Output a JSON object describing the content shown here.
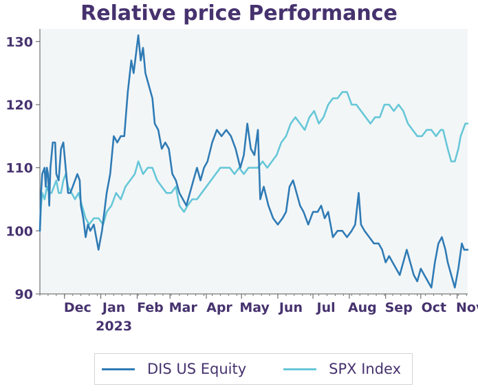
{
  "chart_data": {
    "type": "line",
    "title": "Relative price Performance",
    "xlabel": "",
    "ylabel": "",
    "ylim": [
      90,
      132
    ],
    "xlim": [
      "2022-11-10",
      "2023-11-10"
    ],
    "yticks": [
      90,
      100,
      110,
      120,
      130
    ],
    "xticks": [
      {
        "date": "2022-12-01",
        "label": "Dec"
      },
      {
        "date": "2023-01-01",
        "label": "Jan",
        "sublabel": "2023"
      },
      {
        "date": "2023-02-01",
        "label": "Feb"
      },
      {
        "date": "2023-03-01",
        "label": "Mar"
      },
      {
        "date": "2023-04-01",
        "label": "Apr"
      },
      {
        "date": "2023-05-01",
        "label": "May"
      },
      {
        "date": "2023-06-01",
        "label": "Jun"
      },
      {
        "date": "2023-07-01",
        "label": "Jul"
      },
      {
        "date": "2023-08-01",
        "label": "Aug"
      },
      {
        "date": "2023-09-01",
        "label": "Sep"
      },
      {
        "date": "2023-10-01",
        "label": "Oct"
      },
      {
        "date": "2023-11-01",
        "label": "Nov"
      }
    ],
    "grid": false,
    "legend": "bottom-center",
    "series": [
      {
        "name": "DIS US Equity",
        "color": "#2f7bb5",
        "points": [
          [
            "2022-11-10",
            100
          ],
          [
            "2022-11-11",
            106
          ],
          [
            "2022-11-12",
            109
          ],
          [
            "2022-11-14",
            110
          ],
          [
            "2022-11-15",
            107
          ],
          [
            "2022-11-16",
            110
          ],
          [
            "2022-11-17",
            109
          ],
          [
            "2022-11-18",
            104
          ],
          [
            "2022-11-19",
            110
          ],
          [
            "2022-11-21",
            114
          ],
          [
            "2022-11-23",
            114
          ],
          [
            "2022-11-24",
            109
          ],
          [
            "2022-11-26",
            108
          ],
          [
            "2022-11-28",
            113
          ],
          [
            "2022-11-30",
            114
          ],
          [
            "2022-12-02",
            110
          ],
          [
            "2022-12-04",
            106
          ],
          [
            "2022-12-06",
            106
          ],
          [
            "2022-12-08",
            107
          ],
          [
            "2022-12-10",
            108
          ],
          [
            "2022-12-12",
            109
          ],
          [
            "2022-12-14",
            108
          ],
          [
            "2022-12-15",
            104
          ],
          [
            "2022-12-17",
            102
          ],
          [
            "2022-12-19",
            99
          ],
          [
            "2022-12-21",
            101
          ],
          [
            "2022-12-23",
            100
          ],
          [
            "2022-12-26",
            101
          ],
          [
            "2022-12-28",
            99
          ],
          [
            "2022-12-30",
            97
          ],
          [
            "2023-01-02",
            100
          ],
          [
            "2023-01-04",
            103
          ],
          [
            "2023-01-06",
            106
          ],
          [
            "2023-01-09",
            109
          ],
          [
            "2023-01-12",
            115
          ],
          [
            "2023-01-15",
            114
          ],
          [
            "2023-01-18",
            115
          ],
          [
            "2023-01-21",
            115
          ],
          [
            "2023-01-24",
            122
          ],
          [
            "2023-01-27",
            127
          ],
          [
            "2023-01-29",
            125
          ],
          [
            "2023-01-31",
            128
          ],
          [
            "2023-02-02",
            131
          ],
          [
            "2023-02-04",
            127
          ],
          [
            "2023-02-06",
            129
          ],
          [
            "2023-02-08",
            125
          ],
          [
            "2023-02-11",
            123
          ],
          [
            "2023-02-14",
            121
          ],
          [
            "2023-02-16",
            117
          ],
          [
            "2023-02-19",
            116
          ],
          [
            "2023-02-22",
            113
          ],
          [
            "2023-02-25",
            114
          ],
          [
            "2023-02-28",
            113
          ],
          [
            "2023-03-03",
            109
          ],
          [
            "2023-03-06",
            108
          ],
          [
            "2023-03-09",
            106
          ],
          [
            "2023-03-12",
            105
          ],
          [
            "2023-03-15",
            104
          ],
          [
            "2023-03-18",
            106
          ],
          [
            "2023-03-21",
            108
          ],
          [
            "2023-03-24",
            110
          ],
          [
            "2023-03-27",
            108
          ],
          [
            "2023-03-30",
            110
          ],
          [
            "2023-04-02",
            111
          ],
          [
            "2023-04-06",
            114
          ],
          [
            "2023-04-10",
            116
          ],
          [
            "2023-04-14",
            115
          ],
          [
            "2023-04-18",
            116
          ],
          [
            "2023-04-22",
            115
          ],
          [
            "2023-04-26",
            113
          ],
          [
            "2023-04-30",
            110
          ],
          [
            "2023-05-03",
            112
          ],
          [
            "2023-05-06",
            117
          ],
          [
            "2023-05-09",
            113
          ],
          [
            "2023-05-12",
            112
          ],
          [
            "2023-05-15",
            116
          ],
          [
            "2023-05-17",
            105
          ],
          [
            "2023-05-20",
            107
          ],
          [
            "2023-05-24",
            104
          ],
          [
            "2023-05-28",
            102
          ],
          [
            "2023-06-01",
            101
          ],
          [
            "2023-06-05",
            102
          ],
          [
            "2023-06-08",
            103
          ],
          [
            "2023-06-11",
            107
          ],
          [
            "2023-06-14",
            108
          ],
          [
            "2023-06-17",
            106
          ],
          [
            "2023-06-20",
            104
          ],
          [
            "2023-06-23",
            103
          ],
          [
            "2023-06-27",
            101
          ],
          [
            "2023-07-01",
            103
          ],
          [
            "2023-07-05",
            103
          ],
          [
            "2023-07-08",
            104
          ],
          [
            "2023-07-11",
            102
          ],
          [
            "2023-07-14",
            103
          ],
          [
            "2023-07-18",
            99
          ],
          [
            "2023-07-22",
            100
          ],
          [
            "2023-07-26",
            100
          ],
          [
            "2023-07-30",
            99
          ],
          [
            "2023-08-03",
            100
          ],
          [
            "2023-08-06",
            101
          ],
          [
            "2023-08-09",
            106
          ],
          [
            "2023-08-11",
            101
          ],
          [
            "2023-08-14",
            100
          ],
          [
            "2023-08-18",
            99
          ],
          [
            "2023-08-22",
            98
          ],
          [
            "2023-08-26",
            98
          ],
          [
            "2023-08-29",
            97
          ],
          [
            "2023-09-01",
            95
          ],
          [
            "2023-09-04",
            96
          ],
          [
            "2023-09-07",
            95
          ],
          [
            "2023-09-10",
            94
          ],
          [
            "2023-09-13",
            93
          ],
          [
            "2023-09-16",
            95
          ],
          [
            "2023-09-19",
            97
          ],
          [
            "2023-09-22",
            95
          ],
          [
            "2023-09-25",
            93
          ],
          [
            "2023-09-28",
            92
          ],
          [
            "2023-10-01",
            94
          ],
          [
            "2023-10-04",
            93
          ],
          [
            "2023-10-07",
            92
          ],
          [
            "2023-10-10",
            91
          ],
          [
            "2023-10-13",
            95
          ],
          [
            "2023-10-16",
            98
          ],
          [
            "2023-10-19",
            99
          ],
          [
            "2023-10-22",
            97
          ],
          [
            "2023-10-24",
            95
          ],
          [
            "2023-10-27",
            93
          ],
          [
            "2023-10-30",
            91
          ],
          [
            "2023-11-02",
            94
          ],
          [
            "2023-11-05",
            98
          ],
          [
            "2023-11-07",
            97
          ],
          [
            "2023-11-10",
            97
          ]
        ]
      },
      {
        "name": "SPX Index",
        "color": "#66c7d8",
        "points": [
          [
            "2022-11-10",
            100
          ],
          [
            "2022-11-11",
            104
          ],
          [
            "2022-11-12",
            106
          ],
          [
            "2022-11-14",
            105
          ],
          [
            "2022-11-16",
            107
          ],
          [
            "2022-11-18",
            106
          ],
          [
            "2022-11-20",
            106
          ],
          [
            "2022-11-22",
            107
          ],
          [
            "2022-11-24",
            108
          ],
          [
            "2022-11-26",
            106
          ],
          [
            "2022-11-28",
            106
          ],
          [
            "2022-11-30",
            108
          ],
          [
            "2022-12-02",
            109
          ],
          [
            "2022-12-04",
            107
          ],
          [
            "2022-12-07",
            106
          ],
          [
            "2022-12-10",
            105
          ],
          [
            "2022-12-13",
            106
          ],
          [
            "2022-12-16",
            104
          ],
          [
            "2022-12-19",
            102
          ],
          [
            "2022-12-22",
            101
          ],
          [
            "2022-12-26",
            102
          ],
          [
            "2022-12-30",
            102
          ],
          [
            "2023-01-03",
            101
          ],
          [
            "2023-01-06",
            103
          ],
          [
            "2023-01-10",
            104
          ],
          [
            "2023-01-14",
            106
          ],
          [
            "2023-01-18",
            105
          ],
          [
            "2023-01-22",
            107
          ],
          [
            "2023-01-26",
            108
          ],
          [
            "2023-01-30",
            109
          ],
          [
            "2023-02-02",
            111
          ],
          [
            "2023-02-06",
            109
          ],
          [
            "2023-02-10",
            110
          ],
          [
            "2023-02-14",
            110
          ],
          [
            "2023-02-18",
            108
          ],
          [
            "2023-02-22",
            107
          ],
          [
            "2023-02-26",
            106
          ],
          [
            "2023-03-02",
            106
          ],
          [
            "2023-03-06",
            107
          ],
          [
            "2023-03-09",
            104
          ],
          [
            "2023-03-13",
            103
          ],
          [
            "2023-03-16",
            104
          ],
          [
            "2023-03-20",
            105
          ],
          [
            "2023-03-24",
            105
          ],
          [
            "2023-03-28",
            106
          ],
          [
            "2023-04-01",
            107
          ],
          [
            "2023-04-05",
            108
          ],
          [
            "2023-04-09",
            109
          ],
          [
            "2023-04-13",
            110
          ],
          [
            "2023-04-17",
            110
          ],
          [
            "2023-04-21",
            110
          ],
          [
            "2023-04-25",
            109
          ],
          [
            "2023-04-29",
            110
          ],
          [
            "2023-05-03",
            109
          ],
          [
            "2023-05-07",
            110
          ],
          [
            "2023-05-11",
            110
          ],
          [
            "2023-05-15",
            110
          ],
          [
            "2023-05-19",
            111
          ],
          [
            "2023-05-23",
            110
          ],
          [
            "2023-05-27",
            111
          ],
          [
            "2023-05-31",
            112
          ],
          [
            "2023-06-04",
            114
          ],
          [
            "2023-06-08",
            115
          ],
          [
            "2023-06-12",
            117
          ],
          [
            "2023-06-16",
            118
          ],
          [
            "2023-06-20",
            117
          ],
          [
            "2023-06-24",
            116
          ],
          [
            "2023-06-28",
            118
          ],
          [
            "2023-07-02",
            119
          ],
          [
            "2023-07-06",
            117
          ],
          [
            "2023-07-10",
            118
          ],
          [
            "2023-07-14",
            120
          ],
          [
            "2023-07-18",
            121
          ],
          [
            "2023-07-22",
            121
          ],
          [
            "2023-07-26",
            122
          ],
          [
            "2023-07-30",
            122
          ],
          [
            "2023-08-03",
            120
          ],
          [
            "2023-08-07",
            120
          ],
          [
            "2023-08-11",
            119
          ],
          [
            "2023-08-15",
            118
          ],
          [
            "2023-08-19",
            117
          ],
          [
            "2023-08-23",
            118
          ],
          [
            "2023-08-27",
            118
          ],
          [
            "2023-08-31",
            120
          ],
          [
            "2023-09-04",
            120
          ],
          [
            "2023-09-08",
            119
          ],
          [
            "2023-09-12",
            120
          ],
          [
            "2023-09-16",
            119
          ],
          [
            "2023-09-20",
            117
          ],
          [
            "2023-09-24",
            116
          ],
          [
            "2023-09-28",
            115
          ],
          [
            "2023-10-02",
            115
          ],
          [
            "2023-10-06",
            116
          ],
          [
            "2023-10-10",
            116
          ],
          [
            "2023-10-14",
            115
          ],
          [
            "2023-10-18",
            116
          ],
          [
            "2023-10-20",
            116
          ],
          [
            "2023-10-24",
            113
          ],
          [
            "2023-10-27",
            111
          ],
          [
            "2023-10-30",
            111
          ],
          [
            "2023-11-02",
            113
          ],
          [
            "2023-11-04",
            115
          ],
          [
            "2023-11-06",
            116
          ],
          [
            "2023-11-08",
            117
          ],
          [
            "2023-11-10",
            117
          ]
        ]
      }
    ]
  }
}
